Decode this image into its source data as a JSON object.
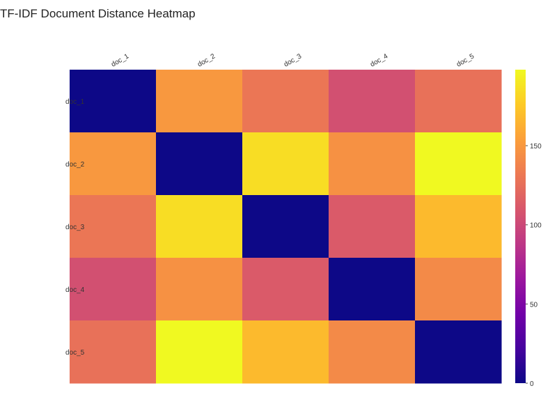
{
  "chart_data": {
    "type": "heatmap",
    "title": "TF-IDF Document Distance Heatmap",
    "x_categories": [
      "doc_1",
      "doc_2",
      "doc_3",
      "doc_4",
      "doc_5"
    ],
    "y_categories": [
      "doc_1",
      "doc_2",
      "doc_3",
      "doc_4",
      "doc_5"
    ],
    "values": [
      [
        0,
        150,
        130,
        105,
        127
      ],
      [
        150,
        0,
        185,
        146,
        198
      ],
      [
        130,
        185,
        0,
        112,
        168
      ],
      [
        105,
        146,
        112,
        0,
        142
      ],
      [
        127,
        198,
        168,
        142,
        0
      ]
    ],
    "zrange": [
      0,
      198
    ],
    "colorscale": "plasma",
    "colorbar": {
      "ticks": [
        0,
        50,
        100,
        150
      ]
    },
    "xlabel": "",
    "ylabel": "",
    "x_axis_side": "top",
    "grid": false
  }
}
